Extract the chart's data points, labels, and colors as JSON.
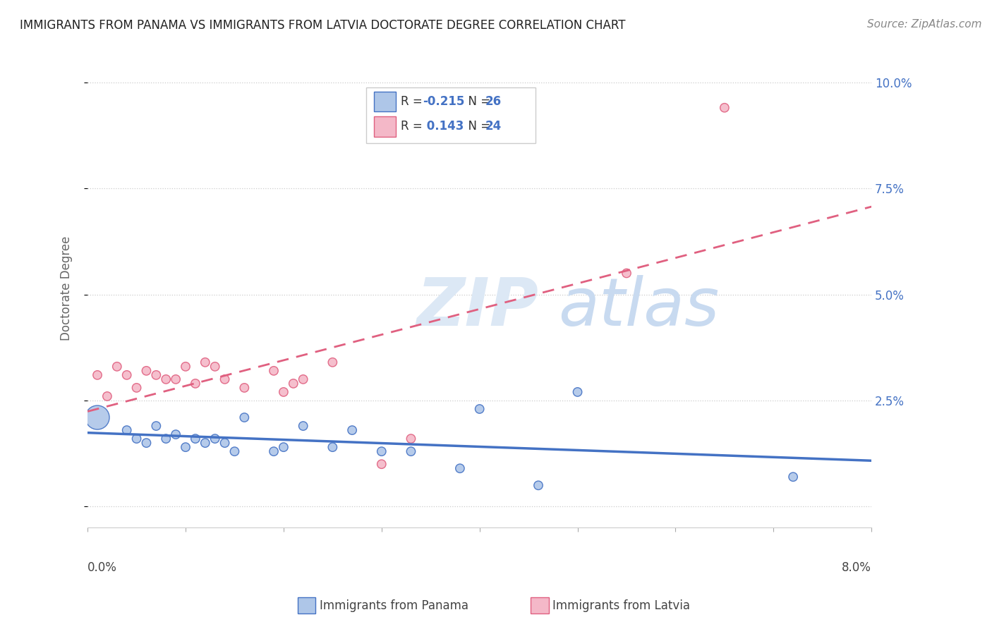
{
  "title": "IMMIGRANTS FROM PANAMA VS IMMIGRANTS FROM LATVIA DOCTORATE DEGREE CORRELATION CHART",
  "source": "Source: ZipAtlas.com",
  "ylabel": "Doctorate Degree",
  "xlim": [
    0.0,
    0.08
  ],
  "ylim": [
    -0.005,
    0.108
  ],
  "yticks": [
    0.0,
    0.025,
    0.05,
    0.075,
    0.1
  ],
  "ytick_labels": [
    "",
    "2.5%",
    "5.0%",
    "7.5%",
    "10.0%"
  ],
  "color_panama": "#aec6e8",
  "color_latvia": "#f4b8c8",
  "color_panama_line": "#4472c4",
  "color_latvia_line": "#e06080",
  "background_color": "#ffffff",
  "watermark_zip": "ZIP",
  "watermark_atlas": "atlas",
  "panama_x": [
    0.001,
    0.004,
    0.005,
    0.006,
    0.007,
    0.008,
    0.009,
    0.01,
    0.011,
    0.012,
    0.013,
    0.014,
    0.015,
    0.016,
    0.019,
    0.02,
    0.022,
    0.025,
    0.027,
    0.03,
    0.033,
    0.038,
    0.04,
    0.046,
    0.05,
    0.072
  ],
  "panama_y": [
    0.021,
    0.018,
    0.016,
    0.015,
    0.019,
    0.016,
    0.017,
    0.014,
    0.016,
    0.015,
    0.016,
    0.015,
    0.013,
    0.021,
    0.013,
    0.014,
    0.019,
    0.014,
    0.018,
    0.013,
    0.013,
    0.009,
    0.023,
    0.005,
    0.027,
    0.007
  ],
  "panama_sizes": [
    600,
    80,
    80,
    80,
    80,
    80,
    80,
    80,
    80,
    80,
    80,
    80,
    80,
    80,
    80,
    80,
    80,
    80,
    80,
    80,
    80,
    80,
    80,
    80,
    80,
    80
  ],
  "latvia_x": [
    0.001,
    0.002,
    0.003,
    0.004,
    0.005,
    0.006,
    0.007,
    0.008,
    0.009,
    0.01,
    0.011,
    0.012,
    0.013,
    0.014,
    0.016,
    0.019,
    0.02,
    0.021,
    0.022,
    0.025,
    0.03,
    0.033,
    0.055,
    0.065
  ],
  "latvia_y": [
    0.031,
    0.026,
    0.033,
    0.031,
    0.028,
    0.032,
    0.031,
    0.03,
    0.03,
    0.033,
    0.029,
    0.034,
    0.033,
    0.03,
    0.028,
    0.032,
    0.027,
    0.029,
    0.03,
    0.034,
    0.01,
    0.016,
    0.055,
    0.094
  ],
  "latvia_sizes": [
    80,
    80,
    80,
    80,
    80,
    80,
    80,
    80,
    80,
    80,
    80,
    80,
    80,
    80,
    80,
    80,
    80,
    80,
    80,
    80,
    80,
    80,
    80,
    80
  ]
}
